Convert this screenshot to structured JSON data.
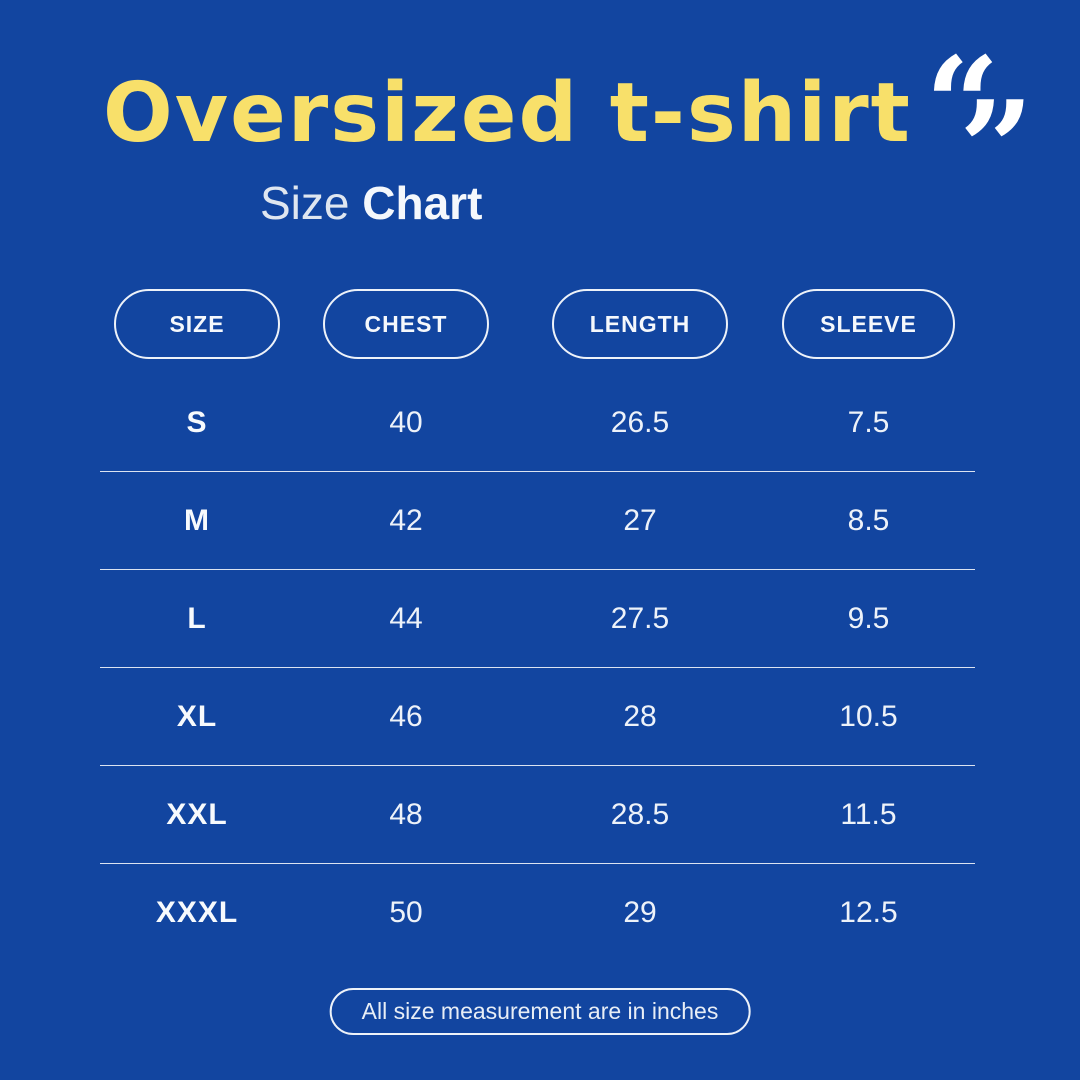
{
  "page": {
    "title": "Oversized t-shirt",
    "subtitle_regular": "Size ",
    "subtitle_bold": "Chart",
    "footer_note": "All size measurement are in inches"
  },
  "icons": {
    "quote_open": "“",
    "quote_close": "”"
  },
  "colors": {
    "background": "#1245A0",
    "title_yellow": "#F8E06A",
    "text_white": "#F5F8FC",
    "border_white": "#EDF2F9"
  },
  "chart_data": {
    "type": "table",
    "title": "Oversized t-shirt Size Chart",
    "units": "inches",
    "columns": [
      "SIZE",
      "CHEST",
      "LENGTH",
      "SLEEVE"
    ],
    "rows": [
      [
        "S",
        "40",
        "26.5",
        "7.5"
      ],
      [
        "M",
        "42",
        "27",
        "8.5"
      ],
      [
        "L",
        "44",
        "27.5",
        "9.5"
      ],
      [
        "XL",
        "46",
        "28",
        "10.5"
      ],
      [
        "XXL",
        "48",
        "28.5",
        "11.5"
      ],
      [
        "XXXL",
        "50",
        "29",
        "12.5"
      ]
    ]
  }
}
